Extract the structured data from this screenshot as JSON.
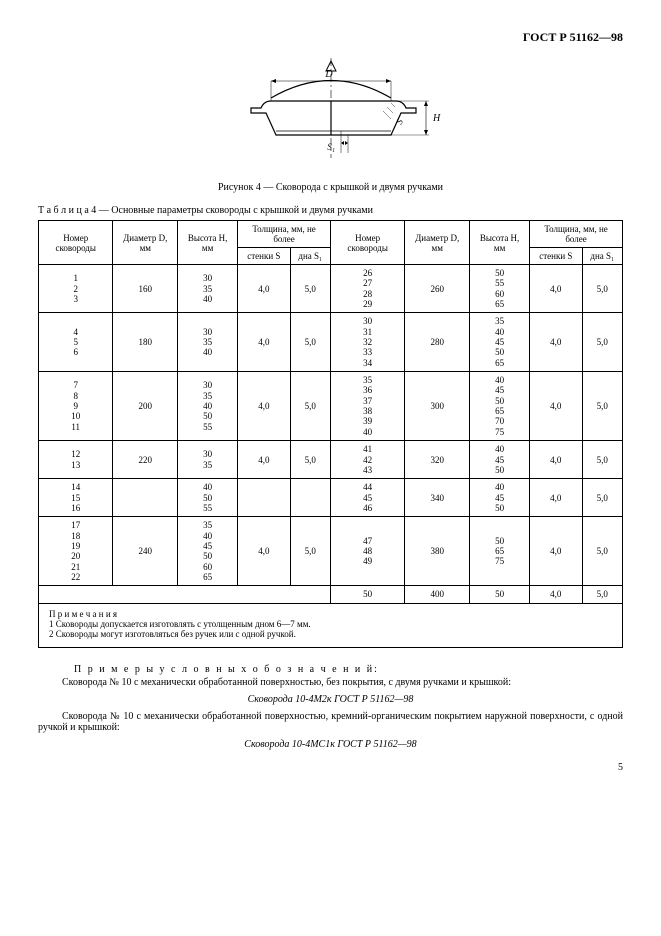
{
  "doc_code": "ГОСТ Р 51162—98",
  "figure": {
    "caption": "Рисунок 4 — Сковорода с крышкой и двумя ручками",
    "labels": {
      "D": "D",
      "H": "H",
      "S": "S",
      "S1": "S₁"
    }
  },
  "table_caption_prefix": "Т а б л и ц а  4",
  "table_caption_rest": " — Основные параметры сковороды с крышкой и двумя ручками",
  "headers": {
    "num": "Номер сковороды",
    "diam": "Диаметр D, мм",
    "height": "Высота H, мм",
    "thick": "Толщина, мм, не более",
    "wall": "стенки S",
    "bottom": "дна S₁"
  },
  "left": [
    {
      "nums": "1\n2\n3",
      "D": "160",
      "H": "30\n35\n40",
      "S": "4,0",
      "S1": "5,0"
    },
    {
      "nums": "4\n5\n6",
      "D": "180",
      "H": "30\n35\n40",
      "S": "4,0",
      "S1": "5,0"
    },
    {
      "nums": "7\n8\n9\n10\n11",
      "D": "200",
      "H": "30\n35\n40\n50\n55",
      "S": "4,0",
      "S1": "5,0"
    },
    {
      "nums": "12\n13",
      "D": "220",
      "H": "30\n35",
      "S": "4,0",
      "S1": "5,0"
    },
    {
      "nums": "14\n15\n16",
      "D": "",
      "H": "40\n50\n55",
      "S": "",
      "S1": ""
    },
    {
      "nums": "17\n18\n19\n20\n21\n22",
      "D": "240",
      "H": "35\n40\n45\n50\n60\n65",
      "S": "4,0",
      "S1": "5,0"
    }
  ],
  "right": [
    {
      "nums": "26\n27\n28\n29",
      "D": "260",
      "H": "50\n55\n60\n65",
      "S": "4,0",
      "S1": "5,0"
    },
    {
      "nums": "30\n31\n32\n33\n34",
      "D": "280",
      "H": "35\n40\n45\n50\n65",
      "S": "4,0",
      "S1": "5,0"
    },
    {
      "nums": "35\n36\n37\n38\n39\n40",
      "D": "300",
      "H": "40\n45\n50\n65\n70\n75",
      "S": "4,0",
      "S1": "5,0"
    },
    {
      "nums": "41\n42\n43",
      "D": "320",
      "H": "40\n45\n50",
      "S": "4,0",
      "S1": "5,0"
    },
    {
      "nums": "44\n45\n46",
      "D": "340",
      "H": "40\n45\n50",
      "S": "4,0",
      "S1": "5,0"
    },
    {
      "nums": "47\n48\n49",
      "D": "380",
      "H": "50\n65\n75",
      "S": "4,0",
      "S1": "5,0"
    },
    {
      "nums": "50",
      "D": "400",
      "H": "50",
      "S": "4,0",
      "S1": "5,0"
    }
  ],
  "notes": {
    "title": "П р и м е ч а н и я",
    "n1": "1  Сковороды допускается изготовлять с утолщенным дном 6—7 мм.",
    "n2": "2  Сковороды могут изготовляться без ручек или с одной ручкой."
  },
  "examples_label": "П р и м е р ы   у с л о в н ы х   о б о з н а ч е н и й:",
  "para1": "Сковорода № 10 с механически обработанной поверхностью, без покрытия, с двумя ручками и крышкой:",
  "desig1": "Сковорода 10-4М2к ГОСТ Р 51162—98",
  "para2": "Сковорода № 10 с механически обработанной поверхностью, кремний-органическим покрытием наружной поверхности, с одной ручкой и крышкой:",
  "desig2": "Сковорода 10-4МС1к ГОСТ Р 51162—98",
  "page_number": "5"
}
